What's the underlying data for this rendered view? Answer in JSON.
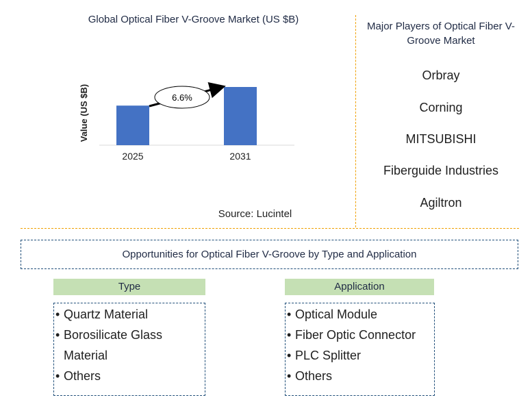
{
  "chart_data": {
    "type": "bar",
    "title": "Global Optical Fiber V-Groove Market (US $B)",
    "ylabel": "Value (US $B)",
    "categories": [
      "2025",
      "2031"
    ],
    "values": [
      0.68,
      1.0
    ],
    "ylim": [
      0,
      1.0
    ],
    "annotation": "6.6%",
    "bar_color": "#4472c4",
    "source": "Source: Lucintel"
  },
  "players": {
    "title": "Major Players of Optical Fiber V-Groove Market",
    "items": [
      "Orbray",
      "Corning",
      "MITSUBISHI",
      "Fiberguide Industries",
      "Agiltron"
    ]
  },
  "opportunities": {
    "title": "Opportunities for Optical Fiber V-Groove by Type and Application",
    "type": {
      "header": "Type",
      "items": [
        "Quartz Material",
        "Borosilicate Glass Material",
        "Others"
      ]
    },
    "application": {
      "header": "Application",
      "items": [
        "Optical Module",
        "Fiber Optic Connector",
        "PLC Splitter",
        "Others"
      ]
    }
  },
  "colors": {
    "divider": "#f0a000",
    "header_fill": "#c5e0b4",
    "box_border": "#1f4e79"
  }
}
